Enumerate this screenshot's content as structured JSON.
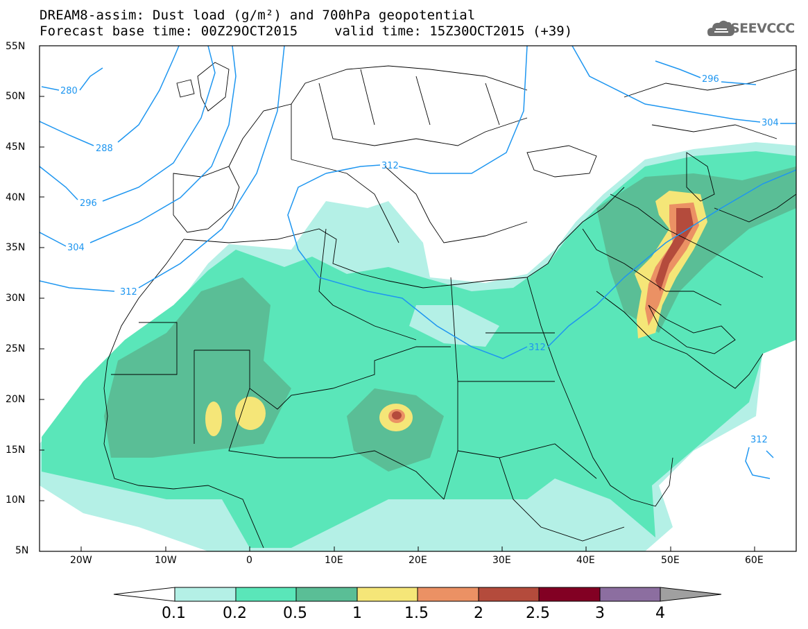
{
  "header": {
    "title_line1": "DREAM8-assim: Dust load (g/m²) and 700hPa geopotential",
    "title_line2": "Forecast base time: 00Z29OCT2015",
    "valid_time": "valid time: 15Z30OCT2015 (+39)"
  },
  "logo": {
    "text": "SEEVCCC",
    "icon": "cloud-logo-icon"
  },
  "axes": {
    "lat_labels": [
      "55N",
      "50N",
      "45N",
      "40N",
      "35N",
      "30N",
      "25N",
      "20N",
      "15N",
      "10N",
      "5N"
    ],
    "lon_labels": [
      "20W",
      "10W",
      "0",
      "10E",
      "20E",
      "30E",
      "40E",
      "50E",
      "60E"
    ]
  },
  "contours": {
    "geopotential_labels": [
      "280",
      "288",
      "296",
      "304",
      "312",
      "312",
      "312",
      "296",
      "304",
      "312"
    ]
  },
  "colorbar": {
    "labels": [
      "0.1",
      "0.2",
      "0.5",
      "1",
      "1.5",
      "2",
      "2.5",
      "3",
      "4"
    ],
    "colors": [
      "#ffffff",
      "#b4f0e6",
      "#5ae6b9",
      "#5abe96",
      "#f5e678",
      "#eb9164",
      "#b44b3c",
      "#820023",
      "#8c6ea0",
      "#a0a0a0"
    ]
  },
  "colors": {
    "contour": "#1e96f0",
    "border": "#000000"
  }
}
